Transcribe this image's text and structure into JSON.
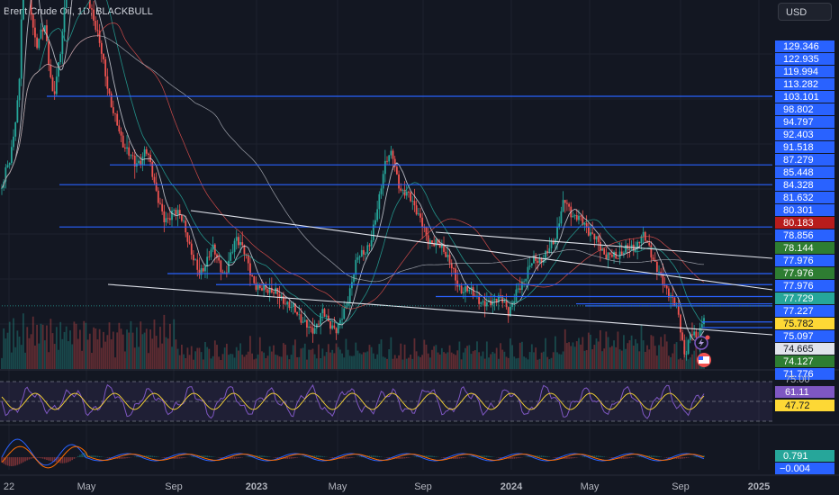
{
  "header": {
    "title": "Brent Crude Oil, 1D, BLACKBULL",
    "currency": "USD"
  },
  "colors": {
    "background": "#131722",
    "grid": "#1e222d",
    "blue_level": "#2962ff",
    "up": "#26a69a",
    "down": "#ef5350",
    "rsi": "#7e57c2",
    "macd": "#2962ff",
    "signal": "#ff6d00"
  },
  "chart_data": {
    "type": "candlestick",
    "title": "Brent Crude Oil, 1D, BLACKBULL",
    "x_ticks": [
      "22",
      "May",
      "Sep",
      "2023",
      "May",
      "Sep",
      "2024",
      "May",
      "Sep",
      "2025"
    ],
    "y_range": [
      71.776,
      129.346
    ],
    "price_path": [
      [
        0,
        92
      ],
      [
        0.02,
        95
      ],
      [
        0.04,
        104
      ],
      [
        0.055,
        128
      ],
      [
        0.065,
        115
      ],
      [
        0.08,
        108
      ],
      [
        0.1,
        112
      ],
      [
        0.12,
        103
      ],
      [
        0.14,
        110
      ],
      [
        0.165,
        124
      ],
      [
        0.19,
        117
      ],
      [
        0.21,
        113
      ],
      [
        0.25,
        104
      ],
      [
        0.28,
        97
      ],
      [
        0.31,
        95
      ],
      [
        0.335,
        97
      ],
      [
        0.355,
        92
      ],
      [
        0.38,
        88
      ],
      [
        0.4,
        90
      ],
      [
        0.43,
        86
      ],
      [
        0.46,
        82
      ],
      [
        0.49,
        84
      ],
      [
        0.52,
        82
      ],
      [
        0.545,
        86
      ],
      [
        0.57,
        83
      ],
      [
        0.6,
        80
      ],
      [
        0.63,
        79
      ],
      [
        0.66,
        79
      ],
      [
        0.69,
        76
      ],
      [
        0.72,
        75
      ],
      [
        0.745,
        77
      ],
      [
        0.76,
        75
      ],
      [
        0.78,
        75
      ],
      [
        0.8,
        78
      ],
      [
        0.83,
        83
      ],
      [
        0.86,
        86
      ],
      [
        0.89,
        94
      ],
      [
        0.91,
        96
      ],
      [
        0.93,
        92
      ],
      [
        0.95,
        91
      ],
      [
        0.97,
        88
      ],
      [
        1.0,
        86
      ],
      [
        1.03,
        84
      ],
      [
        1.06,
        81
      ],
      [
        1.09,
        79
      ],
      [
        1.12,
        78
      ],
      [
        1.14,
        79
      ],
      [
        1.16,
        78
      ],
      [
        1.18,
        77
      ],
      [
        1.2,
        80
      ],
      [
        1.23,
        82
      ],
      [
        1.26,
        84
      ],
      [
        1.29,
        86
      ],
      [
        1.31,
        90
      ],
      [
        1.34,
        89
      ],
      [
        1.37,
        86
      ],
      [
        1.4,
        85
      ],
      [
        1.43,
        83
      ],
      [
        1.46,
        85
      ],
      [
        1.49,
        86
      ],
      [
        1.52,
        83
      ],
      [
        1.55,
        80
      ],
      [
        1.575,
        76
      ],
      [
        1.59,
        72
      ],
      [
        1.605,
        75
      ],
      [
        1.62,
        74
      ],
      [
        1.635,
        76
      ]
    ],
    "horizontal_levels": [
      103.101,
      94.797,
      92.403,
      87.279,
      81.632,
      80.301,
      78.856,
      77.976,
      77.729,
      75.782,
      75.097
    ],
    "price_labels": [
      {
        "value": "129.346",
        "type": "level"
      },
      {
        "value": "122.935",
        "type": "level"
      },
      {
        "value": "119.994",
        "type": "level"
      },
      {
        "value": "113.282",
        "type": "level"
      },
      {
        "value": "103.101",
        "type": "level"
      },
      {
        "value": "98.802",
        "type": "level"
      },
      {
        "value": "94.797",
        "type": "level"
      },
      {
        "value": "92.403",
        "type": "level"
      },
      {
        "value": "91.518",
        "type": "level"
      },
      {
        "value": "87.279",
        "type": "level"
      },
      {
        "value": "85.448",
        "type": "level"
      },
      {
        "value": "84.328",
        "type": "level"
      },
      {
        "value": "81.632",
        "type": "level"
      },
      {
        "value": "80.301",
        "type": "level"
      },
      {
        "value": "80.183",
        "type": "red"
      },
      {
        "value": "78.856",
        "type": "level"
      },
      {
        "value": "78.144",
        "type": "green"
      },
      {
        "value": "77.976",
        "type": "level"
      },
      {
        "value": "77.976",
        "type": "green"
      },
      {
        "value": "77.976",
        "type": "level"
      },
      {
        "value": "77.729",
        "type": "teal"
      },
      {
        "value": "77.227",
        "type": "level"
      },
      {
        "value": "75.782",
        "type": "yellow"
      },
      {
        "value": "75.097",
        "type": "level"
      },
      {
        "value": "74.665",
        "type": "white"
      },
      {
        "value": "74.127",
        "type": "green"
      },
      {
        "value": "71.776",
        "type": "level"
      }
    ],
    "rsi": {
      "levels": [
        75.0
      ],
      "value": "61.11",
      "ma_value": "47.72"
    },
    "macd": {
      "value": "0.791",
      "signal": "−0.004"
    }
  }
}
